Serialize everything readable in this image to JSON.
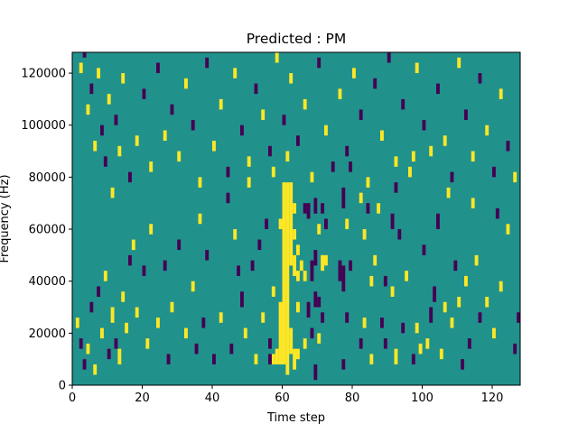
{
  "chart_data": {
    "type": "heatmap",
    "title": "Predicted : PM",
    "xlabel": "Time step",
    "ylabel": "Frequency (Hz)",
    "xlim": [
      0,
      128
    ],
    "ylim": [
      0,
      128000
    ],
    "x_ticks": [
      0,
      20,
      40,
      60,
      80,
      100,
      120
    ],
    "y_ticks": [
      0,
      20000,
      40000,
      60000,
      80000,
      100000,
      120000
    ],
    "x_tick_labels": [
      "0",
      "20",
      "40",
      "60",
      "80",
      "100",
      "120"
    ],
    "y_tick_labels": [
      "0",
      "20000",
      "40000",
      "60000",
      "80000",
      "100000",
      "120000"
    ],
    "colormap": "viridis",
    "colors": {
      "background": "#21918c",
      "high": "#fde725",
      "low": "#440154"
    },
    "levels": {
      "background": 0,
      "high": 1,
      "low": -1
    },
    "rows": 128,
    "cell_freq_hz": 1000,
    "cells": [
      {
        "t": 60,
        "f": 8,
        "h": 70,
        "v": 1
      },
      {
        "t": 61,
        "f": 8,
        "h": 70,
        "v": 1
      },
      {
        "t": 62,
        "f": 46,
        "h": 32,
        "v": 1
      },
      {
        "t": 59,
        "f": 8,
        "h": 24,
        "v": 1
      },
      {
        "t": 58,
        "f": 8,
        "h": 6,
        "v": 1
      },
      {
        "t": 57,
        "f": 8,
        "h": 4,
        "v": 1
      },
      {
        "t": 62,
        "f": 12,
        "h": 10,
        "v": 1
      },
      {
        "t": 63,
        "f": 6,
        "h": 8,
        "v": 1
      },
      {
        "t": 56,
        "f": 8,
        "h": 4,
        "v": -1
      },
      {
        "t": 63,
        "f": 66,
        "h": 4,
        "v": 1
      },
      {
        "t": 63,
        "f": 56,
        "h": 4,
        "v": 1
      },
      {
        "t": 63,
        "f": 42,
        "h": 8,
        "v": 1
      },
      {
        "t": 61,
        "f": 4,
        "h": 4,
        "v": 1
      },
      {
        "t": 61,
        "f": 86,
        "h": 4,
        "v": 1
      },
      {
        "t": 57,
        "f": 80,
        "h": 4,
        "v": 1
      },
      {
        "t": 59,
        "f": 60,
        "h": 4,
        "v": 1
      },
      {
        "t": 64,
        "f": 40,
        "h": 4,
        "v": 1
      },
      {
        "t": 64,
        "f": 50,
        "h": 4,
        "v": 1
      },
      {
        "t": 64,
        "f": 28,
        "h": 4,
        "v": 1
      },
      {
        "t": 65,
        "f": 44,
        "h": 4,
        "v": 1
      },
      {
        "t": 66,
        "f": 40,
        "h": 4,
        "v": 1
      },
      {
        "t": 66,
        "f": 14,
        "h": 4,
        "v": 1
      },
      {
        "t": 64,
        "f": 10,
        "h": 4,
        "v": 1
      },
      {
        "t": 66,
        "f": 66,
        "h": 4,
        "v": -1
      },
      {
        "t": 67,
        "f": 64,
        "h": 6,
        "v": -1
      },
      {
        "t": 67,
        "f": 26,
        "h": 6,
        "v": -1
      },
      {
        "t": 68,
        "f": 40,
        "h": 8,
        "v": -1
      },
      {
        "t": 69,
        "f": 2,
        "h": 6,
        "v": -1
      },
      {
        "t": 68,
        "f": 18,
        "h": 4,
        "v": -1
      },
      {
        "t": 69,
        "f": 66,
        "h": 6,
        "v": -1
      },
      {
        "t": 69,
        "f": 46,
        "h": 6,
        "v": -1
      },
      {
        "t": 69,
        "f": 30,
        "h": 6,
        "v": -1
      },
      {
        "t": 70,
        "f": 58,
        "h": 4,
        "v": 1
      },
      {
        "t": 71,
        "f": 44,
        "h": 6,
        "v": 1
      },
      {
        "t": 70,
        "f": 30,
        "h": 4,
        "v": -1
      },
      {
        "t": 71,
        "f": 24,
        "h": 4,
        "v": -1
      },
      {
        "t": 72,
        "f": 46,
        "h": 4,
        "v": 1
      },
      {
        "t": 70,
        "f": 16,
        "h": 4,
        "v": 1
      },
      {
        "t": 71,
        "f": 66,
        "h": 4,
        "v": -1
      },
      {
        "t": 72,
        "f": 60,
        "h": 4,
        "v": -1
      },
      {
        "t": 76,
        "f": 40,
        "h": 8,
        "v": -1
      },
      {
        "t": 77,
        "f": 36,
        "h": 10,
        "v": -1
      },
      {
        "t": 77,
        "f": 6,
        "h": 4,
        "v": -1
      },
      {
        "t": 77,
        "f": 68,
        "h": 8,
        "v": -1
      },
      {
        "t": 78,
        "f": 60,
        "h": 4,
        "v": 1
      },
      {
        "t": 78,
        "f": 24,
        "h": 4,
        "v": -1
      },
      {
        "t": 79,
        "f": 44,
        "h": 4,
        "v": -1
      },
      {
        "t": 79,
        "f": 82,
        "h": 4,
        "v": -1
      },
      {
        "t": 82,
        "f": 70,
        "h": 4,
        "v": 1
      },
      {
        "t": 83,
        "f": 56,
        "h": 4,
        "v": 1
      },
      {
        "t": 82,
        "f": 14,
        "h": 4,
        "v": -1
      },
      {
        "t": 83,
        "f": 22,
        "h": 4,
        "v": 1
      },
      {
        "t": 84,
        "f": 66,
        "h": 4,
        "v": -1
      },
      {
        "t": 85,
        "f": 38,
        "h": 4,
        "v": 1
      },
      {
        "t": 85,
        "f": 8,
        "h": 4,
        "v": 1
      },
      {
        "t": 86,
        "f": 46,
        "h": 4,
        "v": 1
      },
      {
        "t": 87,
        "f": 66,
        "h": 4,
        "v": 1
      },
      {
        "t": 88,
        "f": 22,
        "h": 4,
        "v": -1
      },
      {
        "t": 89,
        "f": 38,
        "h": 4,
        "v": -1
      },
      {
        "t": 89,
        "f": 14,
        "h": 4,
        "v": -1
      },
      {
        "t": 91,
        "f": 60,
        "h": 6,
        "v": -1
      },
      {
        "t": 91,
        "f": 34,
        "h": 4,
        "v": 1
      },
      {
        "t": 92,
        "f": 8,
        "h": 6,
        "v": 1
      },
      {
        "t": 92,
        "f": 74,
        "h": 4,
        "v": -1
      },
      {
        "t": 93,
        "f": 56,
        "h": 4,
        "v": -1
      },
      {
        "t": 94,
        "f": 20,
        "h": 4,
        "v": -1
      },
      {
        "t": 95,
        "f": 40,
        "h": 4,
        "v": 1
      },
      {
        "t": 97,
        "f": 8,
        "h": 4,
        "v": -1
      },
      {
        "t": 97,
        "f": 86,
        "h": 4,
        "v": 1
      },
      {
        "t": 98,
        "f": 20,
        "h": 4,
        "v": 1
      },
      {
        "t": 99,
        "f": 12,
        "h": 4,
        "v": 1
      },
      {
        "t": 100,
        "f": 50,
        "h": 4,
        "v": -1
      },
      {
        "t": 101,
        "f": 14,
        "h": 4,
        "v": 1
      },
      {
        "t": 102,
        "f": 24,
        "h": 6,
        "v": -1
      },
      {
        "t": 103,
        "f": 32,
        "h": 6,
        "v": -1
      },
      {
        "t": 104,
        "f": 60,
        "h": 6,
        "v": -1
      },
      {
        "t": 105,
        "f": 10,
        "h": 4,
        "v": 1
      },
      {
        "t": 106,
        "f": 28,
        "h": 4,
        "v": 1
      },
      {
        "t": 107,
        "f": 72,
        "h": 4,
        "v": 1
      },
      {
        "t": 108,
        "f": 22,
        "h": 4,
        "v": 1
      },
      {
        "t": 109,
        "f": 44,
        "h": 4,
        "v": -1
      },
      {
        "t": 110,
        "f": 30,
        "h": 4,
        "v": 1
      },
      {
        "t": 111,
        "f": 6,
        "h": 4,
        "v": -1
      },
      {
        "t": 112,
        "f": 38,
        "h": 4,
        "v": 1
      },
      {
        "t": 113,
        "f": 14,
        "h": 4,
        "v": -1
      },
      {
        "t": 114,
        "f": 68,
        "h": 4,
        "v": 1
      },
      {
        "t": 115,
        "f": 46,
        "h": 4,
        "v": 1
      },
      {
        "t": 116,
        "f": 24,
        "h": 4,
        "v": -1
      },
      {
        "t": 118,
        "f": 30,
        "h": 4,
        "v": 1
      },
      {
        "t": 120,
        "f": 18,
        "h": 4,
        "v": 1
      },
      {
        "t": 121,
        "f": 64,
        "h": 4,
        "v": -1
      },
      {
        "t": 122,
        "f": 36,
        "h": 4,
        "v": 1
      },
      {
        "t": 124,
        "f": 58,
        "h": 4,
        "v": 1
      },
      {
        "t": 126,
        "f": 12,
        "h": 4,
        "v": -1
      },
      {
        "t": 127,
        "f": 24,
        "h": 4,
        "v": -1
      },
      {
        "t": 1,
        "f": 22,
        "h": 4,
        "v": 1
      },
      {
        "t": 2,
        "f": 14,
        "h": 4,
        "v": -1
      },
      {
        "t": 3,
        "f": 6,
        "h": 4,
        "v": -1
      },
      {
        "t": 4,
        "f": 12,
        "h": 4,
        "v": 1
      },
      {
        "t": 5,
        "f": 28,
        "h": 4,
        "v": -1
      },
      {
        "t": 6,
        "f": 4,
        "h": 4,
        "v": 1
      },
      {
        "t": 7,
        "f": 34,
        "h": 4,
        "v": -1
      },
      {
        "t": 8,
        "f": 18,
        "h": 4,
        "v": 1
      },
      {
        "t": 9,
        "f": 40,
        "h": 4,
        "v": 1
      },
      {
        "t": 10,
        "f": 10,
        "h": 4,
        "v": -1
      },
      {
        "t": 11,
        "f": 24,
        "h": 6,
        "v": 1
      },
      {
        "t": 12,
        "f": 14,
        "h": 4,
        "v": -1
      },
      {
        "t": 13,
        "f": 8,
        "h": 6,
        "v": 1
      },
      {
        "t": 14,
        "f": 32,
        "h": 4,
        "v": 1
      },
      {
        "t": 15,
        "f": 20,
        "h": 4,
        "v": 1
      },
      {
        "t": 16,
        "f": 46,
        "h": 4,
        "v": -1
      },
      {
        "t": 17,
        "f": 52,
        "h": 4,
        "v": 1
      },
      {
        "t": 18,
        "f": 26,
        "h": 4,
        "v": 1
      },
      {
        "t": 20,
        "f": 42,
        "h": 4,
        "v": -1
      },
      {
        "t": 21,
        "f": 14,
        "h": 4,
        "v": 1
      },
      {
        "t": 22,
        "f": 58,
        "h": 4,
        "v": 1
      },
      {
        "t": 24,
        "f": 22,
        "h": 4,
        "v": 1
      },
      {
        "t": 26,
        "f": 44,
        "h": 4,
        "v": -1
      },
      {
        "t": 27,
        "f": 8,
        "h": 4,
        "v": -1
      },
      {
        "t": 28,
        "f": 28,
        "h": 4,
        "v": 1
      },
      {
        "t": 30,
        "f": 52,
        "h": 4,
        "v": -1
      },
      {
        "t": 32,
        "f": 18,
        "h": 4,
        "v": 1
      },
      {
        "t": 34,
        "f": 36,
        "h": 4,
        "v": 1
      },
      {
        "t": 35,
        "f": 12,
        "h": 4,
        "v": -1
      },
      {
        "t": 36,
        "f": 62,
        "h": 4,
        "v": 1
      },
      {
        "t": 37,
        "f": 22,
        "h": 4,
        "v": -1
      },
      {
        "t": 38,
        "f": 48,
        "h": 4,
        "v": -1
      },
      {
        "t": 40,
        "f": 8,
        "h": 4,
        "v": -1
      },
      {
        "t": 42,
        "f": 24,
        "h": 4,
        "v": 1
      },
      {
        "t": 44,
        "f": 70,
        "h": 4,
        "v": -1
      },
      {
        "t": 45,
        "f": 12,
        "h": 4,
        "v": -1
      },
      {
        "t": 46,
        "f": 56,
        "h": 4,
        "v": 1
      },
      {
        "t": 47,
        "f": 42,
        "h": 4,
        "v": -1
      },
      {
        "t": 48,
        "f": 30,
        "h": 6,
        "v": -1
      },
      {
        "t": 49,
        "f": 18,
        "h": 4,
        "v": 1
      },
      {
        "t": 50,
        "f": 76,
        "h": 4,
        "v": 1
      },
      {
        "t": 51,
        "f": 44,
        "h": 4,
        "v": -1
      },
      {
        "t": 52,
        "f": 8,
        "h": 4,
        "v": 1
      },
      {
        "t": 53,
        "f": 52,
        "h": 4,
        "v": -1
      },
      {
        "t": 54,
        "f": 24,
        "h": 4,
        "v": 1
      },
      {
        "t": 55,
        "f": 60,
        "h": 4,
        "v": -1
      },
      {
        "t": 56,
        "f": 14,
        "h": 4,
        "v": -1
      },
      {
        "t": 57,
        "f": 34,
        "h": 4,
        "v": 1
      },
      {
        "t": 2,
        "f": 120,
        "h": 4,
        "v": 1
      },
      {
        "t": 3,
        "f": 126,
        "h": 2,
        "v": -1
      },
      {
        "t": 4,
        "f": 104,
        "h": 4,
        "v": 1
      },
      {
        "t": 5,
        "f": 112,
        "h": 4,
        "v": -1
      },
      {
        "t": 6,
        "f": 90,
        "h": 4,
        "v": 1
      },
      {
        "t": 7,
        "f": 118,
        "h": 4,
        "v": 1
      },
      {
        "t": 8,
        "f": 96,
        "h": 4,
        "v": -1
      },
      {
        "t": 9,
        "f": 84,
        "h": 4,
        "v": -1
      },
      {
        "t": 10,
        "f": 108,
        "h": 4,
        "v": 1
      },
      {
        "t": 11,
        "f": 72,
        "h": 4,
        "v": 1
      },
      {
        "t": 12,
        "f": 100,
        "h": 4,
        "v": -1
      },
      {
        "t": 13,
        "f": 88,
        "h": 4,
        "v": 1
      },
      {
        "t": 14,
        "f": 116,
        "h": 4,
        "v": 1
      },
      {
        "t": 16,
        "f": 78,
        "h": 4,
        "v": -1
      },
      {
        "t": 18,
        "f": 92,
        "h": 4,
        "v": 1
      },
      {
        "t": 20,
        "f": 110,
        "h": 4,
        "v": -1
      },
      {
        "t": 22,
        "f": 82,
        "h": 4,
        "v": 1
      },
      {
        "t": 24,
        "f": 120,
        "h": 4,
        "v": -1
      },
      {
        "t": 26,
        "f": 94,
        "h": 4,
        "v": 1
      },
      {
        "t": 28,
        "f": 104,
        "h": 4,
        "v": -1
      },
      {
        "t": 30,
        "f": 86,
        "h": 4,
        "v": 1
      },
      {
        "t": 32,
        "f": 114,
        "h": 4,
        "v": 1
      },
      {
        "t": 34,
        "f": 98,
        "h": 4,
        "v": -1
      },
      {
        "t": 36,
        "f": 76,
        "h": 4,
        "v": 1
      },
      {
        "t": 38,
        "f": 122,
        "h": 4,
        "v": -1
      },
      {
        "t": 40,
        "f": 90,
        "h": 4,
        "v": 1
      },
      {
        "t": 42,
        "f": 106,
        "h": 4,
        "v": 1
      },
      {
        "t": 44,
        "f": 80,
        "h": 4,
        "v": -1
      },
      {
        "t": 46,
        "f": 118,
        "h": 4,
        "v": 1
      },
      {
        "t": 48,
        "f": 96,
        "h": 4,
        "v": -1
      },
      {
        "t": 50,
        "f": 84,
        "h": 4,
        "v": 1
      },
      {
        "t": 52,
        "f": 112,
        "h": 4,
        "v": -1
      },
      {
        "t": 54,
        "f": 102,
        "h": 4,
        "v": 1
      },
      {
        "t": 56,
        "f": 88,
        "h": 4,
        "v": -1
      },
      {
        "t": 58,
        "f": 124,
        "h": 4,
        "v": 1
      },
      {
        "t": 60,
        "f": 100,
        "h": 4,
        "v": -1
      },
      {
        "t": 62,
        "f": 116,
        "h": 4,
        "v": 1
      },
      {
        "t": 64,
        "f": 92,
        "h": 4,
        "v": -1
      },
      {
        "t": 66,
        "f": 106,
        "h": 4,
        "v": 1
      },
      {
        "t": 68,
        "f": 78,
        "h": 4,
        "v": 1
      },
      {
        "t": 70,
        "f": 122,
        "h": 4,
        "v": -1
      },
      {
        "t": 72,
        "f": 96,
        "h": 4,
        "v": 1
      },
      {
        "t": 74,
        "f": 82,
        "h": 4,
        "v": -1
      },
      {
        "t": 76,
        "f": 110,
        "h": 4,
        "v": 1
      },
      {
        "t": 78,
        "f": 88,
        "h": 4,
        "v": -1
      },
      {
        "t": 80,
        "f": 118,
        "h": 4,
        "v": 1
      },
      {
        "t": 82,
        "f": 102,
        "h": 4,
        "v": -1
      },
      {
        "t": 84,
        "f": 76,
        "h": 4,
        "v": 1
      },
      {
        "t": 86,
        "f": 114,
        "h": 4,
        "v": -1
      },
      {
        "t": 88,
        "f": 94,
        "h": 4,
        "v": 1
      },
      {
        "t": 90,
        "f": 124,
        "h": 4,
        "v": -1
      },
      {
        "t": 92,
        "f": 84,
        "h": 4,
        "v": 1
      },
      {
        "t": 94,
        "f": 106,
        "h": 4,
        "v": -1
      },
      {
        "t": 96,
        "f": 80,
        "h": 4,
        "v": 1
      },
      {
        "t": 98,
        "f": 120,
        "h": 4,
        "v": 1
      },
      {
        "t": 100,
        "f": 98,
        "h": 4,
        "v": -1
      },
      {
        "t": 102,
        "f": 88,
        "h": 4,
        "v": 1
      },
      {
        "t": 104,
        "f": 112,
        "h": 4,
        "v": -1
      },
      {
        "t": 106,
        "f": 92,
        "h": 4,
        "v": 1
      },
      {
        "t": 108,
        "f": 78,
        "h": 4,
        "v": -1
      },
      {
        "t": 110,
        "f": 122,
        "h": 4,
        "v": 1
      },
      {
        "t": 112,
        "f": 102,
        "h": 4,
        "v": -1
      },
      {
        "t": 114,
        "f": 86,
        "h": 4,
        "v": 1
      },
      {
        "t": 116,
        "f": 116,
        "h": 4,
        "v": -1
      },
      {
        "t": 118,
        "f": 96,
        "h": 4,
        "v": 1
      },
      {
        "t": 120,
        "f": 80,
        "h": 4,
        "v": -1
      },
      {
        "t": 122,
        "f": 110,
        "h": 4,
        "v": 1
      },
      {
        "t": 124,
        "f": 90,
        "h": 4,
        "v": -1
      },
      {
        "t": 126,
        "f": 78,
        "h": 4,
        "v": 1
      }
    ]
  }
}
